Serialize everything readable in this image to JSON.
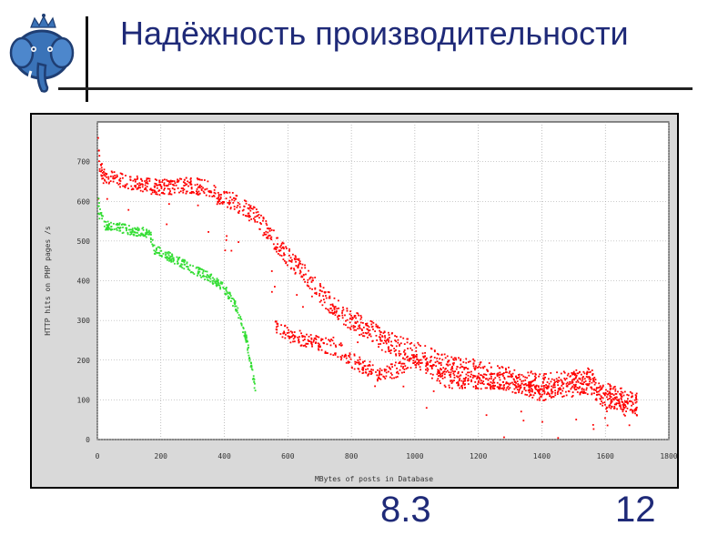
{
  "slide": {
    "title": "Надёжность производительности",
    "bottom_labels": [
      "8.3",
      "12"
    ],
    "logo_colors": {
      "elephant": "#3a73b8",
      "outline": "#1f3e73"
    }
  },
  "chart_data": {
    "type": "scatter",
    "title": "",
    "xlabel": "MBytes of posts in Database",
    "ylabel": "HTTP hits on PHP pages /s",
    "xlim": [
      0,
      1800
    ],
    "ylim": [
      0,
      800
    ],
    "xticks": [
      0,
      200,
      400,
      600,
      800,
      1000,
      1200,
      1400,
      1600,
      1800
    ],
    "yticks": [
      0,
      100,
      200,
      300,
      400,
      500,
      600,
      700
    ],
    "grid": true,
    "series": [
      {
        "color": "#ff0000",
        "marker": "dot",
        "profile": [
          [
            0,
            760
          ],
          [
            10,
            680
          ],
          [
            30,
            660
          ],
          [
            100,
            650
          ],
          [
            150,
            640
          ],
          [
            200,
            635
          ],
          [
            300,
            640
          ],
          [
            350,
            630
          ],
          [
            400,
            610
          ],
          [
            450,
            590
          ],
          [
            500,
            560
          ],
          [
            560,
            500
          ],
          [
            600,
            460
          ],
          [
            650,
            420
          ],
          [
            700,
            370
          ],
          [
            750,
            330
          ],
          [
            800,
            300
          ],
          [
            850,
            280
          ],
          [
            900,
            250
          ],
          [
            1000,
            220
          ],
          [
            1100,
            190
          ],
          [
            1200,
            170
          ],
          [
            1300,
            150
          ],
          [
            1400,
            135
          ],
          [
            1500,
            140
          ],
          [
            1550,
            150
          ],
          [
            1600,
            110
          ],
          [
            1700,
            85
          ]
        ],
        "lower_branch": [
          [
            560,
            280
          ],
          [
            650,
            250
          ],
          [
            750,
            230
          ],
          [
            800,
            200
          ],
          [
            900,
            160
          ],
          [
            1000,
            200
          ],
          [
            1100,
            150
          ],
          [
            1200,
            145
          ],
          [
            1300,
            150
          ],
          [
            1400,
            115
          ],
          [
            1550,
            160
          ],
          [
            1600,
            100
          ],
          [
            1700,
            90
          ]
        ]
      },
      {
        "color": "#33dd33",
        "marker": "dot",
        "profile": [
          [
            0,
            610
          ],
          [
            15,
            540
          ],
          [
            60,
            535
          ],
          [
            120,
            525
          ],
          [
            165,
            520
          ],
          [
            180,
            480
          ],
          [
            230,
            460
          ],
          [
            300,
            430
          ],
          [
            350,
            410
          ],
          [
            400,
            380
          ],
          [
            440,
            330
          ],
          [
            470,
            250
          ],
          [
            490,
            160
          ],
          [
            500,
            115
          ]
        ]
      }
    ]
  }
}
